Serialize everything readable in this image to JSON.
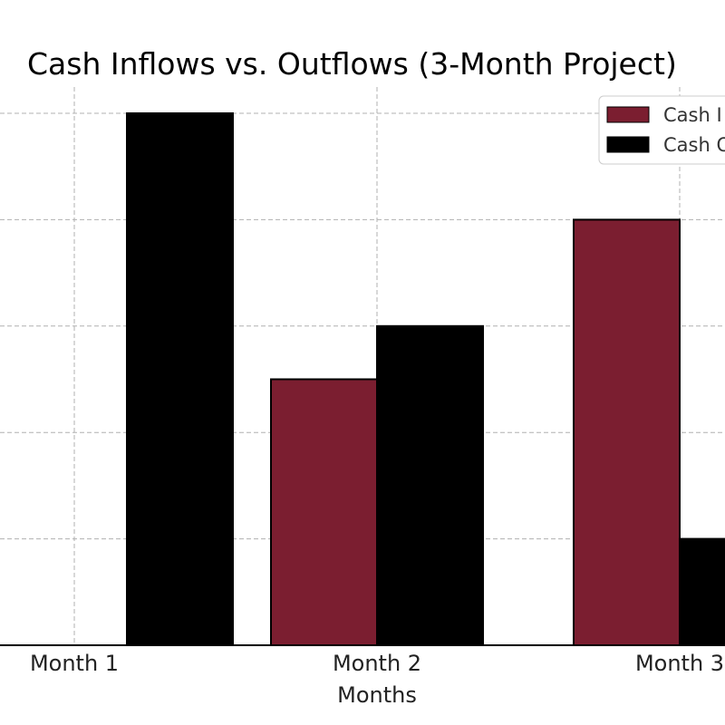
{
  "chart_data": {
    "type": "bar",
    "title": "Cash Inflows vs. Outflows (3-Month Project)",
    "xlabel": "Months",
    "ylabel": "",
    "categories": [
      "Month 1",
      "Month 2",
      "Month 3"
    ],
    "series": [
      {
        "name": "Cash Inflows",
        "legend_text": "Cash I",
        "values": [
          0,
          25000,
          40000
        ],
        "color": "#7b1e30"
      },
      {
        "name": "Cash Outflows",
        "legend_text": "Cash O",
        "values": [
          50000,
          30000,
          10000
        ],
        "color": "#000000"
      }
    ],
    "ylim": [
      0,
      55000
    ],
    "grid": true,
    "legend_position": "top-right"
  }
}
